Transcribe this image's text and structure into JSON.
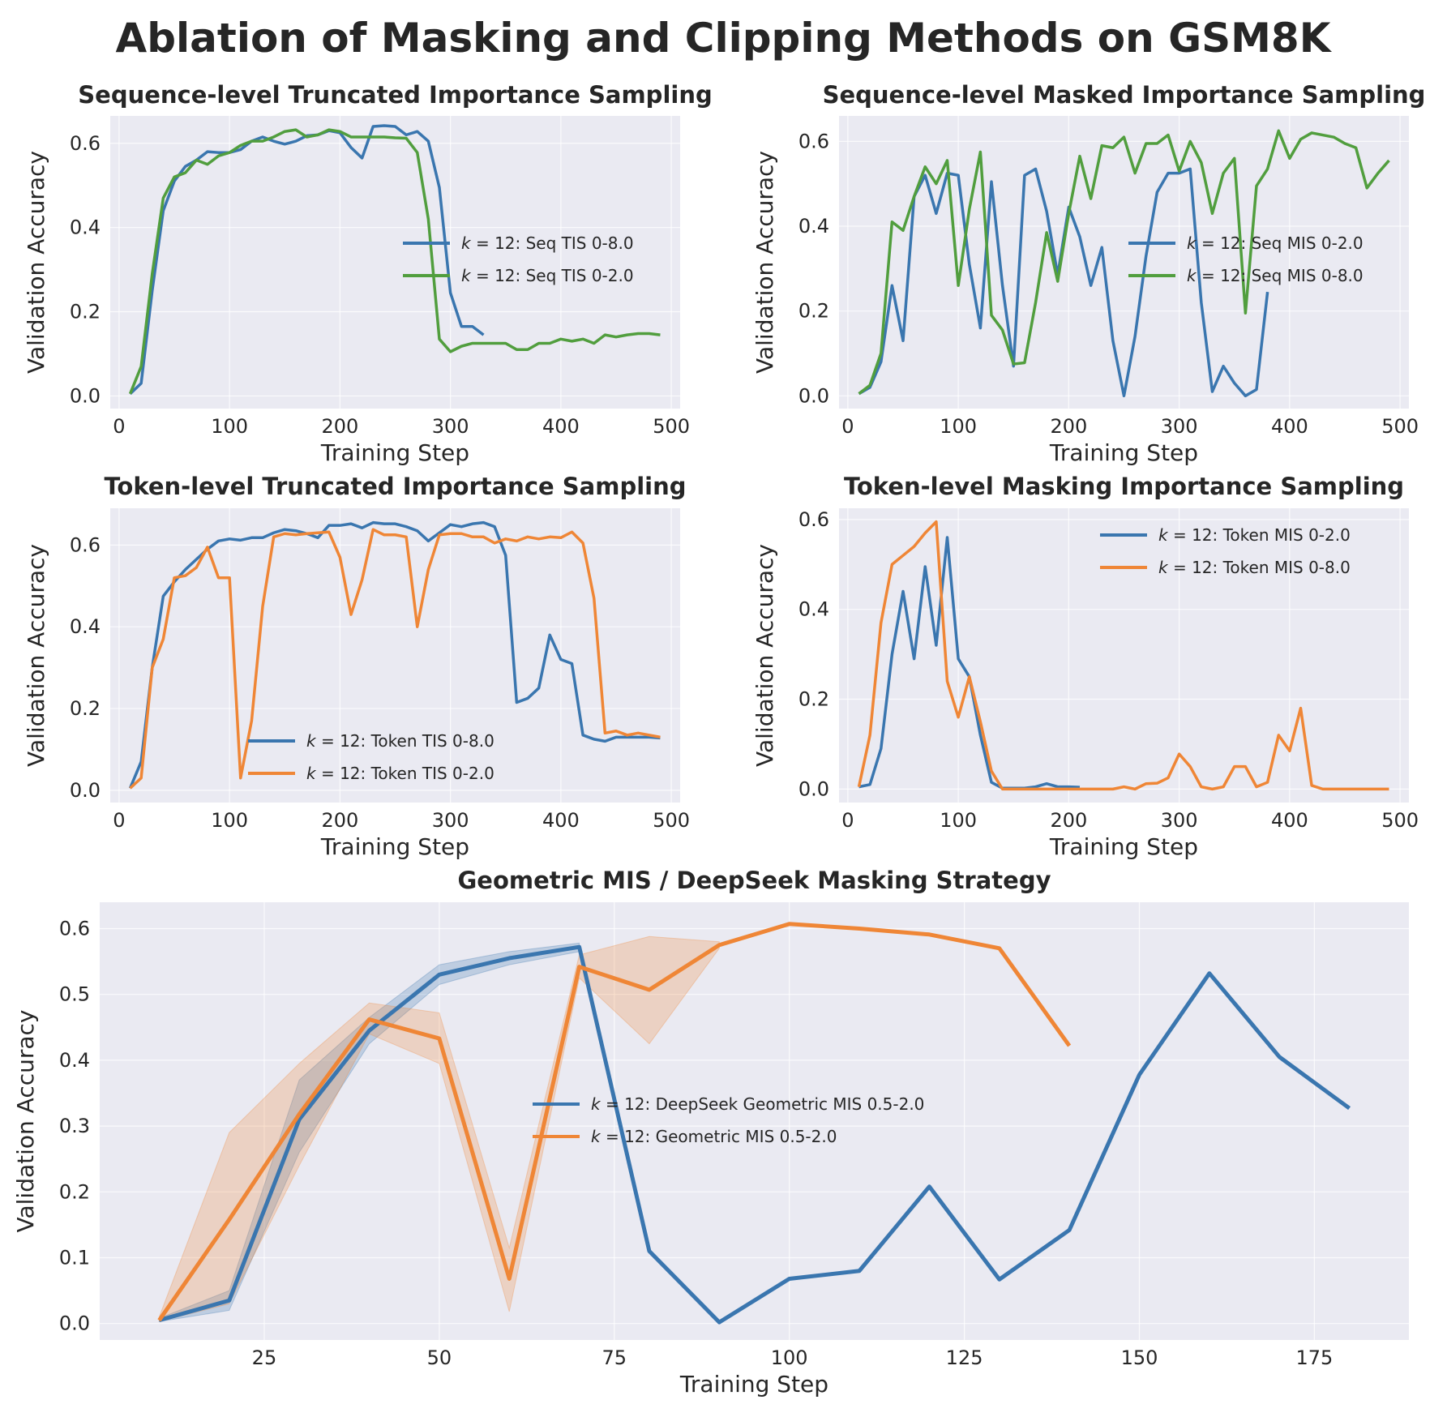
{
  "figure": {
    "title": "Ablation of Masking and Clipping Methods on GSM8K"
  },
  "chart_data": [
    {
      "type": "line",
      "title": "Sequence-level Truncated Importance Sampling",
      "xlabel": "Training Step",
      "ylabel": "Validation Accuracy",
      "xlim": [
        -8,
        508
      ],
      "ylim": [
        -0.03,
        0.665
      ],
      "xticks": [
        0,
        100,
        200,
        300,
        400,
        500
      ],
      "yticks": [
        0.0,
        0.2,
        0.4,
        0.6
      ],
      "legend_position": "center-right",
      "grid": true,
      "series": [
        {
          "name": "k = 12: Seq TIS 0-8.0",
          "color": "#3a76af",
          "x": [
            10,
            20,
            30,
            40,
            50,
            60,
            70,
            80,
            90,
            100,
            110,
            120,
            130,
            140,
            150,
            160,
            170,
            180,
            190,
            200,
            210,
            220,
            230,
            240,
            250,
            260,
            270,
            280,
            290,
            300,
            310,
            320,
            330
          ],
          "y": [
            0.005,
            0.03,
            0.25,
            0.44,
            0.51,
            0.545,
            0.56,
            0.58,
            0.578,
            0.578,
            0.585,
            0.605,
            0.615,
            0.605,
            0.598,
            0.605,
            0.618,
            0.62,
            0.63,
            0.625,
            0.59,
            0.565,
            0.64,
            0.642,
            0.64,
            0.62,
            0.628,
            0.605,
            0.495,
            0.245,
            0.165,
            0.165,
            0.145
          ]
        },
        {
          "name": "k = 12: Seq TIS 0-2.0",
          "color": "#519e3e",
          "x": [
            10,
            20,
            30,
            40,
            50,
            60,
            70,
            80,
            90,
            100,
            110,
            120,
            130,
            140,
            150,
            160,
            170,
            180,
            190,
            200,
            210,
            220,
            230,
            240,
            250,
            260,
            270,
            280,
            290,
            300,
            310,
            320,
            330,
            340,
            350,
            360,
            370,
            380,
            390,
            400,
            410,
            420,
            430,
            440,
            450,
            460,
            470,
            480,
            490
          ],
          "y": [
            0.005,
            0.07,
            0.29,
            0.47,
            0.52,
            0.53,
            0.56,
            0.55,
            0.57,
            0.578,
            0.595,
            0.605,
            0.605,
            0.615,
            0.628,
            0.632,
            0.615,
            0.62,
            0.632,
            0.628,
            0.615,
            0.615,
            0.615,
            0.615,
            0.613,
            0.612,
            0.578,
            0.42,
            0.135,
            0.105,
            0.118,
            0.125,
            0.125,
            0.125,
            0.125,
            0.11,
            0.11,
            0.125,
            0.125,
            0.135,
            0.13,
            0.135,
            0.125,
            0.145,
            0.14,
            0.145,
            0.148,
            0.148,
            0.145
          ]
        }
      ]
    },
    {
      "type": "line",
      "title": "Sequence-level Masked Importance Sampling",
      "xlabel": "Training Step",
      "ylabel": "Validation Accuracy",
      "xlim": [
        -8,
        508
      ],
      "ylim": [
        -0.03,
        0.66
      ],
      "xticks": [
        0,
        100,
        200,
        300,
        400,
        500
      ],
      "yticks": [
        0.0,
        0.2,
        0.4,
        0.6
      ],
      "legend_position": "center-right",
      "grid": true,
      "series": [
        {
          "name": "k = 12: Seq MIS 0-2.0",
          "color": "#3a76af",
          "x": [
            10,
            20,
            30,
            40,
            50,
            60,
            70,
            80,
            90,
            100,
            110,
            120,
            130,
            140,
            150,
            160,
            170,
            180,
            190,
            200,
            210,
            220,
            230,
            240,
            250,
            260,
            270,
            280,
            290,
            300,
            310,
            320,
            330,
            340,
            350,
            360,
            370,
            380
          ],
          "y": [
            0.005,
            0.02,
            0.08,
            0.26,
            0.13,
            0.47,
            0.52,
            0.43,
            0.525,
            0.52,
            0.31,
            0.16,
            0.505,
            0.26,
            0.07,
            0.52,
            0.535,
            0.435,
            0.285,
            0.445,
            0.375,
            0.26,
            0.35,
            0.13,
            0.0,
            0.14,
            0.33,
            0.48,
            0.525,
            0.525,
            0.535,
            0.22,
            0.01,
            0.07,
            0.03,
            0.0,
            0.015,
            0.245
          ]
        },
        {
          "name": "k = 12: Seq MIS 0-8.0",
          "color": "#519e3e",
          "x": [
            10,
            20,
            30,
            40,
            50,
            60,
            70,
            80,
            90,
            100,
            110,
            120,
            130,
            140,
            150,
            160,
            170,
            180,
            190,
            200,
            210,
            220,
            230,
            240,
            250,
            260,
            270,
            280,
            290,
            300,
            310,
            320,
            330,
            340,
            350,
            360,
            370,
            380,
            390,
            400,
            410,
            420,
            430,
            440,
            450,
            460,
            470,
            480,
            490
          ],
          "y": [
            0.005,
            0.025,
            0.1,
            0.41,
            0.39,
            0.47,
            0.54,
            0.5,
            0.555,
            0.26,
            0.44,
            0.575,
            0.19,
            0.155,
            0.075,
            0.078,
            0.22,
            0.385,
            0.27,
            0.43,
            0.565,
            0.465,
            0.59,
            0.585,
            0.61,
            0.525,
            0.595,
            0.595,
            0.615,
            0.53,
            0.6,
            0.55,
            0.43,
            0.525,
            0.56,
            0.195,
            0.495,
            0.535,
            0.625,
            0.56,
            0.605,
            0.62,
            0.615,
            0.61,
            0.595,
            0.585,
            0.49,
            0.525,
            0.555
          ]
        }
      ]
    },
    {
      "type": "line",
      "title": "Token-level Truncated Importance Sampling",
      "xlabel": "Training Step",
      "ylabel": "Validation Accuracy",
      "xlim": [
        -8,
        508
      ],
      "ylim": [
        -0.03,
        0.69
      ],
      "xticks": [
        0,
        100,
        200,
        300,
        400,
        500
      ],
      "yticks": [
        0.0,
        0.2,
        0.4,
        0.6
      ],
      "legend_position": "lower-center",
      "grid": true,
      "series": [
        {
          "name": "k = 12: Token TIS 0-8.0",
          "color": "#3a76af",
          "x": [
            10,
            20,
            30,
            40,
            50,
            60,
            70,
            80,
            90,
            100,
            110,
            120,
            130,
            140,
            150,
            160,
            170,
            180,
            190,
            200,
            210,
            220,
            230,
            240,
            250,
            260,
            270,
            280,
            290,
            300,
            310,
            320,
            330,
            340,
            350,
            360,
            370,
            380,
            390,
            400,
            410,
            420,
            430,
            440,
            450,
            460,
            470,
            480,
            490
          ],
          "y": [
            0.005,
            0.07,
            0.3,
            0.475,
            0.51,
            0.54,
            0.565,
            0.59,
            0.61,
            0.615,
            0.612,
            0.618,
            0.618,
            0.63,
            0.638,
            0.635,
            0.628,
            0.618,
            0.648,
            0.648,
            0.652,
            0.642,
            0.655,
            0.652,
            0.652,
            0.645,
            0.635,
            0.61,
            0.63,
            0.65,
            0.645,
            0.652,
            0.655,
            0.645,
            0.575,
            0.215,
            0.225,
            0.25,
            0.38,
            0.32,
            0.31,
            0.135,
            0.125,
            0.12,
            0.13,
            0.13,
            0.13,
            0.13,
            0.128
          ]
        },
        {
          "name": "k = 12: Token TIS 0-2.0",
          "color": "#ef8636",
          "x": [
            10,
            20,
            30,
            40,
            50,
            60,
            70,
            80,
            90,
            100,
            110,
            120,
            130,
            140,
            150,
            160,
            170,
            180,
            190,
            200,
            210,
            220,
            230,
            240,
            250,
            260,
            270,
            280,
            290,
            300,
            310,
            320,
            330,
            340,
            350,
            360,
            370,
            380,
            390,
            400,
            410,
            420,
            430,
            440,
            450,
            460,
            470,
            480,
            490
          ],
          "y": [
            0.005,
            0.03,
            0.3,
            0.37,
            0.52,
            0.525,
            0.545,
            0.595,
            0.52,
            0.52,
            0.03,
            0.17,
            0.45,
            0.62,
            0.628,
            0.625,
            0.628,
            0.63,
            0.632,
            0.57,
            0.43,
            0.515,
            0.638,
            0.625,
            0.625,
            0.62,
            0.4,
            0.54,
            0.625,
            0.628,
            0.628,
            0.62,
            0.62,
            0.605,
            0.615,
            0.61,
            0.62,
            0.615,
            0.62,
            0.618,
            0.632,
            0.605,
            0.47,
            0.14,
            0.145,
            0.135,
            0.14,
            0.135,
            0.13
          ]
        }
      ]
    },
    {
      "type": "line",
      "title": "Token-level Masking Importance Sampling",
      "xlabel": "Training Step",
      "ylabel": "Validation Accuracy",
      "xlim": [
        -8,
        508
      ],
      "ylim": [
        -0.03,
        0.625
      ],
      "xticks": [
        0,
        100,
        200,
        300,
        400,
        500
      ],
      "yticks": [
        0.0,
        0.2,
        0.4,
        0.6
      ],
      "legend_position": "upper-right",
      "grid": true,
      "series": [
        {
          "name": "k = 12:  Token MIS 0-2.0",
          "color": "#3a76af",
          "x": [
            10,
            20,
            30,
            40,
            50,
            60,
            70,
            80,
            90,
            100,
            110,
            120,
            130,
            140,
            150,
            160,
            170,
            180,
            190,
            200,
            210
          ],
          "y": [
            0.005,
            0.01,
            0.09,
            0.3,
            0.44,
            0.29,
            0.495,
            0.32,
            0.56,
            0.29,
            0.25,
            0.12,
            0.015,
            0.002,
            0.002,
            0.002,
            0.005,
            0.012,
            0.005,
            0.005,
            0.004
          ]
        },
        {
          "name": "k = 12: Token MIS 0-8.0",
          "color": "#ef8636",
          "x": [
            10,
            20,
            30,
            40,
            50,
            60,
            70,
            80,
            90,
            100,
            110,
            120,
            130,
            140,
            150,
            160,
            170,
            180,
            190,
            200,
            210,
            220,
            230,
            240,
            250,
            260,
            270,
            280,
            290,
            300,
            310,
            320,
            330,
            340,
            350,
            360,
            370,
            380,
            390,
            400,
            410,
            420,
            430,
            440,
            450,
            460,
            470,
            480,
            490
          ],
          "y": [
            0.005,
            0.12,
            0.37,
            0.5,
            0.52,
            0.54,
            0.57,
            0.595,
            0.24,
            0.16,
            0.25,
            0.15,
            0.04,
            0.0,
            0.0,
            0.0,
            0.0,
            0.0,
            0.0,
            0.0,
            0.0,
            0.0,
            0.0,
            0.0,
            0.005,
            0.0,
            0.012,
            0.013,
            0.025,
            0.078,
            0.05,
            0.005,
            0.0,
            0.005,
            0.05,
            0.05,
            0.005,
            0.015,
            0.12,
            0.085,
            0.18,
            0.008,
            0.0,
            0.0,
            0.0,
            0.0,
            0.0,
            0.0,
            0.0
          ]
        }
      ]
    },
    {
      "type": "line",
      "title": "Geometric MIS / DeepSeek Masking Strategy",
      "xlabel": "Training Step",
      "ylabel": "Validation Accuracy",
      "xlim": [
        1.5,
        188.5
      ],
      "ylim": [
        -0.025,
        0.64
      ],
      "xticks": [
        25,
        50,
        75,
        100,
        125,
        150,
        175
      ],
      "yticks": [
        0.0,
        0.1,
        0.2,
        0.3,
        0.4,
        0.5,
        0.6
      ],
      "legend_position": "center",
      "grid": true,
      "series": [
        {
          "name": "k = 12: DeepSeek Geometric MIS 0.5-2.0",
          "color": "#3a76af",
          "x": [
            10,
            20,
            30,
            40,
            50,
            60,
            70,
            80,
            90,
            100,
            110,
            120,
            130,
            140,
            150,
            160,
            170,
            180
          ],
          "y": [
            0.005,
            0.035,
            0.31,
            0.445,
            0.53,
            0.555,
            0.572,
            0.11,
            0.002,
            0.068,
            0.08,
            0.208,
            0.067,
            0.142,
            0.378,
            0.532,
            0.405,
            0.327
          ],
          "band_x": [
            10,
            20,
            30,
            40,
            50,
            60,
            70
          ],
          "band_low": [
            0.003,
            0.02,
            0.26,
            0.425,
            0.515,
            0.545,
            0.565
          ],
          "band_high": [
            0.008,
            0.05,
            0.37,
            0.465,
            0.545,
            0.565,
            0.578
          ]
        },
        {
          "name": "k = 12: Geometric MIS 0.5-2.0",
          "color": "#ef8636",
          "x": [
            10,
            20,
            30,
            40,
            50,
            60,
            70,
            80,
            90,
            100,
            110,
            120,
            130,
            140
          ],
          "y": [
            0.005,
            0.158,
            0.318,
            0.462,
            0.433,
            0.068,
            0.542,
            0.507,
            0.575,
            0.607,
            0.6,
            0.591,
            0.57,
            0.422
          ],
          "band_x": [
            10,
            20,
            30,
            40,
            50,
            60,
            70,
            80,
            90
          ],
          "band_low": [
            0.003,
            0.03,
            0.24,
            0.44,
            0.395,
            0.018,
            0.525,
            0.425,
            0.57
          ],
          "band_high": [
            0.01,
            0.29,
            0.395,
            0.487,
            0.472,
            0.115,
            0.56,
            0.588,
            0.58
          ]
        }
      ]
    }
  ]
}
